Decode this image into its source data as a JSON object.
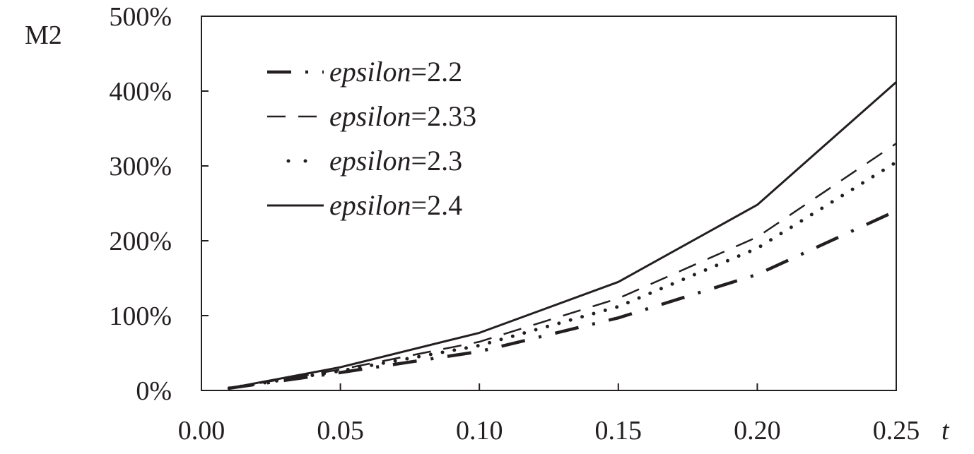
{
  "chart_data": {
    "type": "line",
    "ylabel": "M2",
    "xlabel": "t",
    "xlim": [
      0.0,
      0.25
    ],
    "ylim": [
      0,
      500
    ],
    "x_ticks": [
      "0.00",
      "0.05",
      "0.10",
      "0.15",
      "0.20",
      "0.25"
    ],
    "x_tick_values": [
      0.0,
      0.05,
      0.1,
      0.15,
      0.2,
      0.25
    ],
    "y_ticks": [
      "0%",
      "100%",
      "200%",
      "300%",
      "400%",
      "500%"
    ],
    "y_tick_values": [
      0,
      100,
      200,
      300,
      400,
      500
    ],
    "grid": false,
    "legend_position": "top-left",
    "x": [
      0.01,
      0.05,
      0.1,
      0.15,
      0.2,
      0.25
    ],
    "series": [
      {
        "name_var": "epsilon",
        "name_val": "=2.2",
        "style": "dash-dot",
        "values": [
          3,
          24,
          52,
          97,
          155,
          240
        ]
      },
      {
        "name_var": "epsilon",
        "name_val": "=2.33",
        "style": "dashed",
        "values": [
          3,
          28,
          65,
          123,
          205,
          330
        ]
      },
      {
        "name_var": "epsilon",
        "name_val": "=2.3",
        "style": "dotted",
        "values": [
          3,
          26,
          60,
          112,
          190,
          305
        ]
      },
      {
        "name_var": "epsilon",
        "name_val": "=2.4",
        "style": "solid",
        "values": [
          3,
          31,
          77,
          145,
          248,
          412
        ]
      }
    ]
  }
}
